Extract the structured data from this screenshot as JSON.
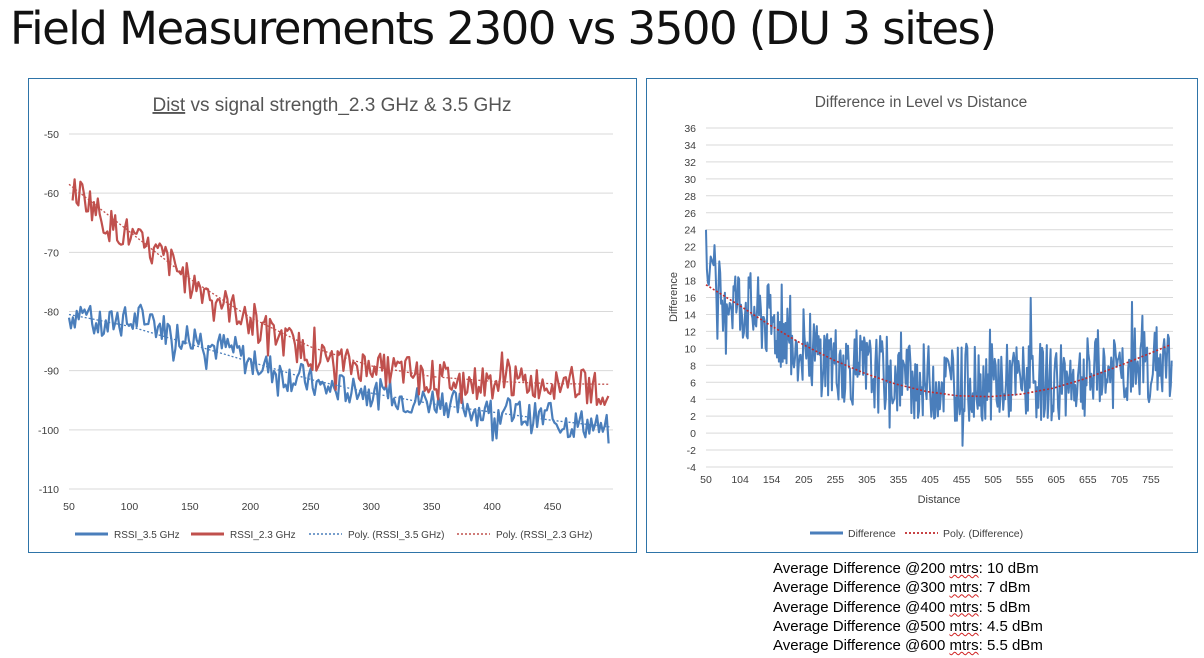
{
  "slide": {
    "title": "Field Measurements 2300 vs 3500 (DU 3 sites)"
  },
  "notes": {
    "lines": [
      {
        "prefix": "Average Difference @200 ",
        "unit": "mtrs",
        "suffix": ": 10 dBm"
      },
      {
        "prefix": "Average Difference @300 ",
        "unit": "mtrs",
        "suffix": ": 7 dBm"
      },
      {
        "prefix": "Average Difference @400 ",
        "unit": "mtrs",
        "suffix": ": 5 dBm"
      },
      {
        "prefix": "Average Difference @500 ",
        "unit": "mtrs",
        "suffix": ": 4.5 dBm"
      },
      {
        "prefix": "Average Difference @600 ",
        "unit": "mtrs",
        "suffix": ": 5.5 dBm"
      }
    ]
  },
  "chart_data": [
    {
      "type": "line",
      "title": "Dist vs signal strength_2.3 GHz & 3.5 GHz",
      "xlabel": "",
      "ylabel": "",
      "xlim": [
        50,
        500
      ],
      "ylim": [
        -110,
        -50
      ],
      "x_ticks": [
        50,
        100,
        150,
        200,
        250,
        300,
        350,
        400,
        450
      ],
      "y_ticks": [
        -50,
        -60,
        -70,
        -80,
        -90,
        -100,
        -110
      ],
      "grid": "horizontal",
      "legend": "bottom",
      "series": [
        {
          "name": "RSSI_3.5 GHz",
          "color": "#4a7ebb",
          "style": "solid",
          "x": [
            50,
            60,
            70,
            80,
            90,
            100,
            110,
            120,
            130,
            140,
            150,
            160,
            170,
            180,
            190,
            200,
            210,
            220,
            230,
            240,
            250,
            260,
            270,
            280,
            290,
            300,
            310,
            320,
            330,
            340,
            350,
            360,
            370,
            380,
            390,
            400,
            410,
            420,
            430,
            440,
            450,
            460,
            470,
            480,
            490,
            497
          ],
          "values": [
            -81,
            -80,
            -82,
            -83,
            -81,
            -82,
            -81,
            -82,
            -83,
            -84,
            -84,
            -85,
            -86,
            -86,
            -87,
            -89,
            -89,
            -90,
            -91,
            -91,
            -92,
            -93,
            -93,
            -93,
            -93,
            -94,
            -94,
            -94,
            -95,
            -95,
            -95,
            -95,
            -96,
            -96,
            -97,
            -97,
            -97,
            -97,
            -98,
            -98,
            -98,
            -99,
            -99,
            -99,
            -100,
            -100
          ]
        },
        {
          "name": "RSSI_2.3 GHz",
          "color": "#c0504d",
          "style": "solid",
          "x": [
            53,
            60,
            70,
            80,
            90,
            100,
            110,
            120,
            130,
            140,
            150,
            160,
            170,
            180,
            190,
            200,
            210,
            220,
            230,
            240,
            250,
            260,
            270,
            280,
            290,
            300,
            310,
            320,
            330,
            340,
            350,
            360,
            370,
            380,
            390,
            400,
            410,
            420,
            430,
            440,
            450,
            460,
            470,
            480,
            490,
            497
          ],
          "values": [
            -60,
            -60,
            -62,
            -65,
            -66,
            -67,
            -69,
            -70,
            -71,
            -73,
            -75,
            -76,
            -77,
            -79,
            -80,
            -82,
            -83,
            -84,
            -85,
            -86,
            -87,
            -88,
            -88,
            -89,
            -89,
            -89,
            -90,
            -90,
            -90,
            -91,
            -91,
            -91,
            -92,
            -92,
            -92,
            -92,
            -92,
            -92,
            -92,
            -92,
            -92,
            -92,
            -92,
            -93,
            -93,
            -93
          ]
        },
        {
          "name": "Poly. (RSSI_3.5 GHz)",
          "color": "#4a7ebb",
          "style": "dotted",
          "x": [
            50,
            100,
            150,
            200,
            250,
            300,
            350,
            400,
            450,
            497
          ],
          "values": [
            -80.5,
            -82.5,
            -85.5,
            -88.5,
            -91.5,
            -93.8,
            -95.6,
            -97.0,
            -98.4,
            -99.5
          ]
        },
        {
          "name": "Poly. (RSSI_2.3 GHz)",
          "color": "#c0504d",
          "style": "dotted",
          "x": [
            50,
            100,
            150,
            200,
            250,
            300,
            350,
            400,
            450,
            497
          ],
          "values": [
            -58.5,
            -66.5,
            -74.5,
            -81.0,
            -86.0,
            -89.2,
            -91.0,
            -91.8,
            -92.2,
            -92.3
          ]
        }
      ]
    },
    {
      "type": "line",
      "title": "Difference in Level vs Distance",
      "xlabel": "Distance",
      "ylabel": "Difference",
      "xlim": [
        50,
        790
      ],
      "ylim": [
        -4,
        36
      ],
      "x_ticks": [
        50,
        104,
        154,
        205,
        255,
        305,
        355,
        405,
        455,
        505,
        555,
        605,
        655,
        705,
        755
      ],
      "y_ticks": [
        36,
        34,
        32,
        30,
        28,
        26,
        24,
        22,
        20,
        18,
        16,
        14,
        12,
        10,
        8,
        6,
        4,
        2,
        0,
        -2,
        -4
      ],
      "grid": "horizontal",
      "legend": "bottom",
      "series": [
        {
          "name": "Difference",
          "color": "#4a7ebb",
          "style": "solid",
          "x": [
            50,
            70,
            90,
            110,
            130,
            150,
            170,
            190,
            210,
            230,
            250,
            270,
            290,
            310,
            330,
            350,
            370,
            390,
            410,
            430,
            450,
            470,
            490,
            510,
            530,
            550,
            570,
            590,
            610,
            630,
            650,
            670,
            690,
            710,
            730,
            750,
            770,
            785
          ],
          "values": [
            20,
            17,
            16,
            15,
            14,
            13,
            12,
            11,
            10,
            9,
            8.5,
            8,
            7.5,
            7,
            7,
            6.5,
            6.5,
            6,
            6,
            6,
            6,
            6,
            6,
            6,
            6,
            6,
            6,
            6,
            6,
            6.5,
            6.5,
            7,
            7,
            7.5,
            8,
            8,
            8.5,
            8.5
          ]
        },
        {
          "name": "Poly. (Difference)",
          "color": "#c0292b",
          "style": "dotted",
          "x": [
            50,
            100,
            150,
            200,
            250,
            300,
            350,
            400,
            450,
            500,
            550,
            600,
            650,
            700,
            750,
            785
          ],
          "values": [
            17.5,
            15.2,
            12.8,
            10.6,
            8.7,
            7.1,
            5.8,
            4.9,
            4.4,
            4.3,
            4.6,
            5.3,
            6.4,
            7.8,
            9.3,
            10.4
          ]
        }
      ]
    }
  ]
}
